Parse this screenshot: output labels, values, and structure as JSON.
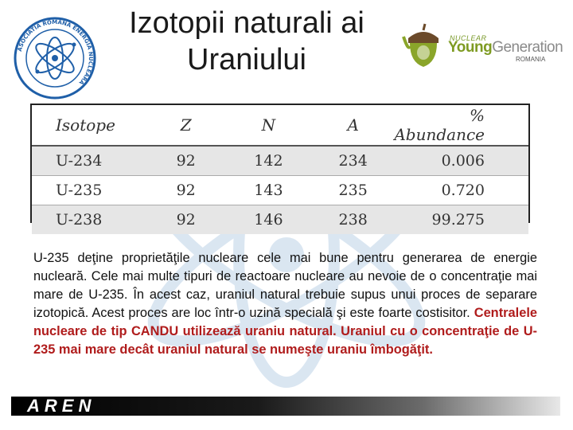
{
  "slide": {
    "title": "Izotopii naturali ai Uraniului"
  },
  "logos": {
    "left_logo": {
      "name": "atom-seal-icon",
      "ring_text": "ASOCIATIA ROMANA ENERGIA NUCLEARA"
    },
    "right_logo": {
      "name": "acorn-icon",
      "small_text": "NUCLEAR",
      "word_young": "Young",
      "word_generation": "Generation",
      "country": "ROMANIA"
    }
  },
  "table": {
    "headers": [
      "Isotope",
      "Z",
      "N",
      "A",
      "% Abundance"
    ],
    "rows": [
      [
        "U-234",
        "92",
        "142",
        "234",
        "0.006"
      ],
      [
        "U-235",
        "92",
        "143",
        "235",
        "0.720"
      ],
      [
        "U-238",
        "92",
        "146",
        "238",
        "99.275"
      ]
    ]
  },
  "body": {
    "text_normal": "U-235 deţine proprietăţile nucleare cele mai bune pentru generarea de energie nucleară. Cele mai multe tipuri de reactoare nucleare au nevoie de o concentraţie mai mare de U-235. În acest caz, uraniul natural trebuie supus unui proces de separare izotopică. Acest proces are loc într-o uzină specială şi este foarte costisitor. ",
    "text_highlight": "Centralele nucleare de tip CANDU utilizează uraniu natural. Uraniul cu o concentraţie de U-235 mai mare decât uraniul natural se numeşte uraniu îmbogăţit."
  },
  "footer": {
    "brand": "AREN"
  },
  "colors": {
    "highlight_text": "#b01c1c",
    "logo_green": "#8aa52a",
    "watermark_blue": "#3a78b8"
  }
}
